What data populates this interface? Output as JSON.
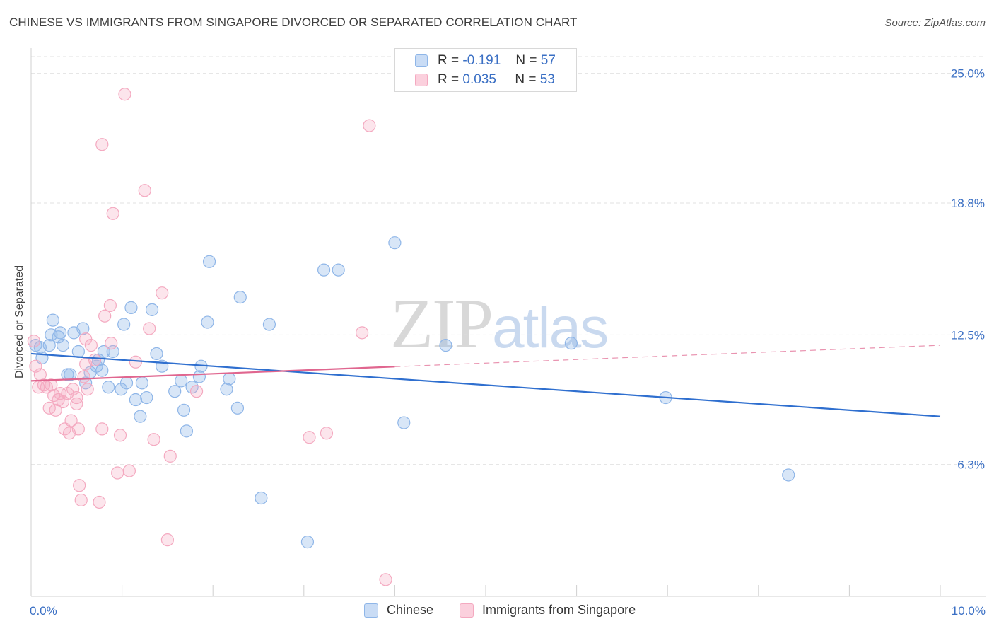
{
  "chart_data": {
    "type": "scatter",
    "title": "CHINESE VS IMMIGRANTS FROM SINGAPORE DIVORCED OR SEPARATED CORRELATION CHART",
    "source": "Source: ZipAtlas.com",
    "xlabel": "",
    "ylabel": "Divorced or Separated",
    "xlim": [
      0,
      10
    ],
    "ylim": [
      0,
      25.8
    ],
    "x_tick_labels": [
      {
        "value": 0,
        "label": "0.0%"
      },
      {
        "value": 10,
        "label": "10.0%"
      }
    ],
    "y_tick_labels": [
      {
        "value": 25.0,
        "label": "25.0%"
      },
      {
        "value": 18.8,
        "label": "18.8%"
      },
      {
        "value": 12.5,
        "label": "12.5%"
      },
      {
        "value": 6.3,
        "label": "6.3%"
      }
    ],
    "grid": true,
    "watermark": {
      "zip": "ZIP",
      "atlas": "atlas"
    },
    "stats_legend": [
      {
        "r_label": "R =",
        "r_value": "-0.191",
        "n_label": "N =",
        "n_value": "57"
      },
      {
        "r_label": "R =",
        "r_value": "0.035",
        "n_label": "N =",
        "n_value": "53"
      }
    ],
    "series": [
      {
        "name": "Chinese",
        "color": "#8fb6e8",
        "line_color": "#2f6fcf",
        "trend": {
          "x0": 0,
          "y0": 11.6,
          "x1": 10,
          "y1": 8.6,
          "solid_until": 10
        },
        "points": [
          [
            0.05,
            12.0
          ],
          [
            0.1,
            11.9
          ],
          [
            0.12,
            11.4
          ],
          [
            0.2,
            12.0
          ],
          [
            0.22,
            12.5
          ],
          [
            0.24,
            13.2
          ],
          [
            0.3,
            12.4
          ],
          [
            0.32,
            12.6
          ],
          [
            0.35,
            12.0
          ],
          [
            0.4,
            10.6
          ],
          [
            0.43,
            10.6
          ],
          [
            0.47,
            12.6
          ],
          [
            0.52,
            11.7
          ],
          [
            0.57,
            12.8
          ],
          [
            0.6,
            10.2
          ],
          [
            0.65,
            10.7
          ],
          [
            0.72,
            11.0
          ],
          [
            0.74,
            11.3
          ],
          [
            0.78,
            10.8
          ],
          [
            0.8,
            11.7
          ],
          [
            0.85,
            10.0
          ],
          [
            0.9,
            11.7
          ],
          [
            0.99,
            9.9
          ],
          [
            1.02,
            13.0
          ],
          [
            1.05,
            10.2
          ],
          [
            1.1,
            13.8
          ],
          [
            1.15,
            9.4
          ],
          [
            1.2,
            8.6
          ],
          [
            1.22,
            10.2
          ],
          [
            1.27,
            9.5
          ],
          [
            1.33,
            13.7
          ],
          [
            1.38,
            11.6
          ],
          [
            1.44,
            11.0
          ],
          [
            1.58,
            9.8
          ],
          [
            1.65,
            10.3
          ],
          [
            1.68,
            8.9
          ],
          [
            1.71,
            7.9
          ],
          [
            1.77,
            10.0
          ],
          [
            1.85,
            10.5
          ],
          [
            1.87,
            11.0
          ],
          [
            1.94,
            13.1
          ],
          [
            1.96,
            16.0
          ],
          [
            2.15,
            9.9
          ],
          [
            2.18,
            10.4
          ],
          [
            2.27,
            9.0
          ],
          [
            2.3,
            14.3
          ],
          [
            2.53,
            4.7
          ],
          [
            2.62,
            13.0
          ],
          [
            3.04,
            2.6
          ],
          [
            3.22,
            15.6
          ],
          [
            3.38,
            15.6
          ],
          [
            4.0,
            16.9
          ],
          [
            4.1,
            8.3
          ],
          [
            4.56,
            12.0
          ],
          [
            5.94,
            12.1
          ],
          [
            6.98,
            9.5
          ],
          [
            8.33,
            5.8
          ]
        ]
      },
      {
        "name": "Immigrants from Singapore",
        "color": "#f4a9c0",
        "line_color": "#e0668f",
        "trend": {
          "x0": 0,
          "y0": 10.3,
          "x1": 10,
          "y1": 12.0,
          "solid_until": 4.0
        },
        "points": [
          [
            0.03,
            12.2
          ],
          [
            0.05,
            11.0
          ],
          [
            0.08,
            10.0
          ],
          [
            0.1,
            10.6
          ],
          [
            0.14,
            10.1
          ],
          [
            0.17,
            10.0
          ],
          [
            0.2,
            9.0
          ],
          [
            0.22,
            10.1
          ],
          [
            0.25,
            9.6
          ],
          [
            0.27,
            8.9
          ],
          [
            0.3,
            9.4
          ],
          [
            0.32,
            9.7
          ],
          [
            0.35,
            9.3
          ],
          [
            0.37,
            8.0
          ],
          [
            0.4,
            9.7
          ],
          [
            0.42,
            7.8
          ],
          [
            0.44,
            8.4
          ],
          [
            0.46,
            9.9
          ],
          [
            0.5,
            9.5
          ],
          [
            0.5,
            9.2
          ],
          [
            0.52,
            8.0
          ],
          [
            0.53,
            5.3
          ],
          [
            0.55,
            4.6
          ],
          [
            0.58,
            10.5
          ],
          [
            0.6,
            11.1
          ],
          [
            0.6,
            12.3
          ],
          [
            0.62,
            9.9
          ],
          [
            0.66,
            12.0
          ],
          [
            0.7,
            11.3
          ],
          [
            0.75,
            4.5
          ],
          [
            0.78,
            21.6
          ],
          [
            0.78,
            8.0
          ],
          [
            0.81,
            13.4
          ],
          [
            0.87,
            13.9
          ],
          [
            0.88,
            12.1
          ],
          [
            0.9,
            18.3
          ],
          [
            0.95,
            5.9
          ],
          [
            0.98,
            7.7
          ],
          [
            1.03,
            24.0
          ],
          [
            1.08,
            6.0
          ],
          [
            1.15,
            11.2
          ],
          [
            1.25,
            19.4
          ],
          [
            1.3,
            12.8
          ],
          [
            1.35,
            7.5
          ],
          [
            1.44,
            14.5
          ],
          [
            1.5,
            2.7
          ],
          [
            1.53,
            6.7
          ],
          [
            1.82,
            9.8
          ],
          [
            3.06,
            7.6
          ],
          [
            3.25,
            7.8
          ],
          [
            3.64,
            12.6
          ],
          [
            3.72,
            22.5
          ],
          [
            3.9,
            0.8
          ]
        ]
      }
    ]
  }
}
